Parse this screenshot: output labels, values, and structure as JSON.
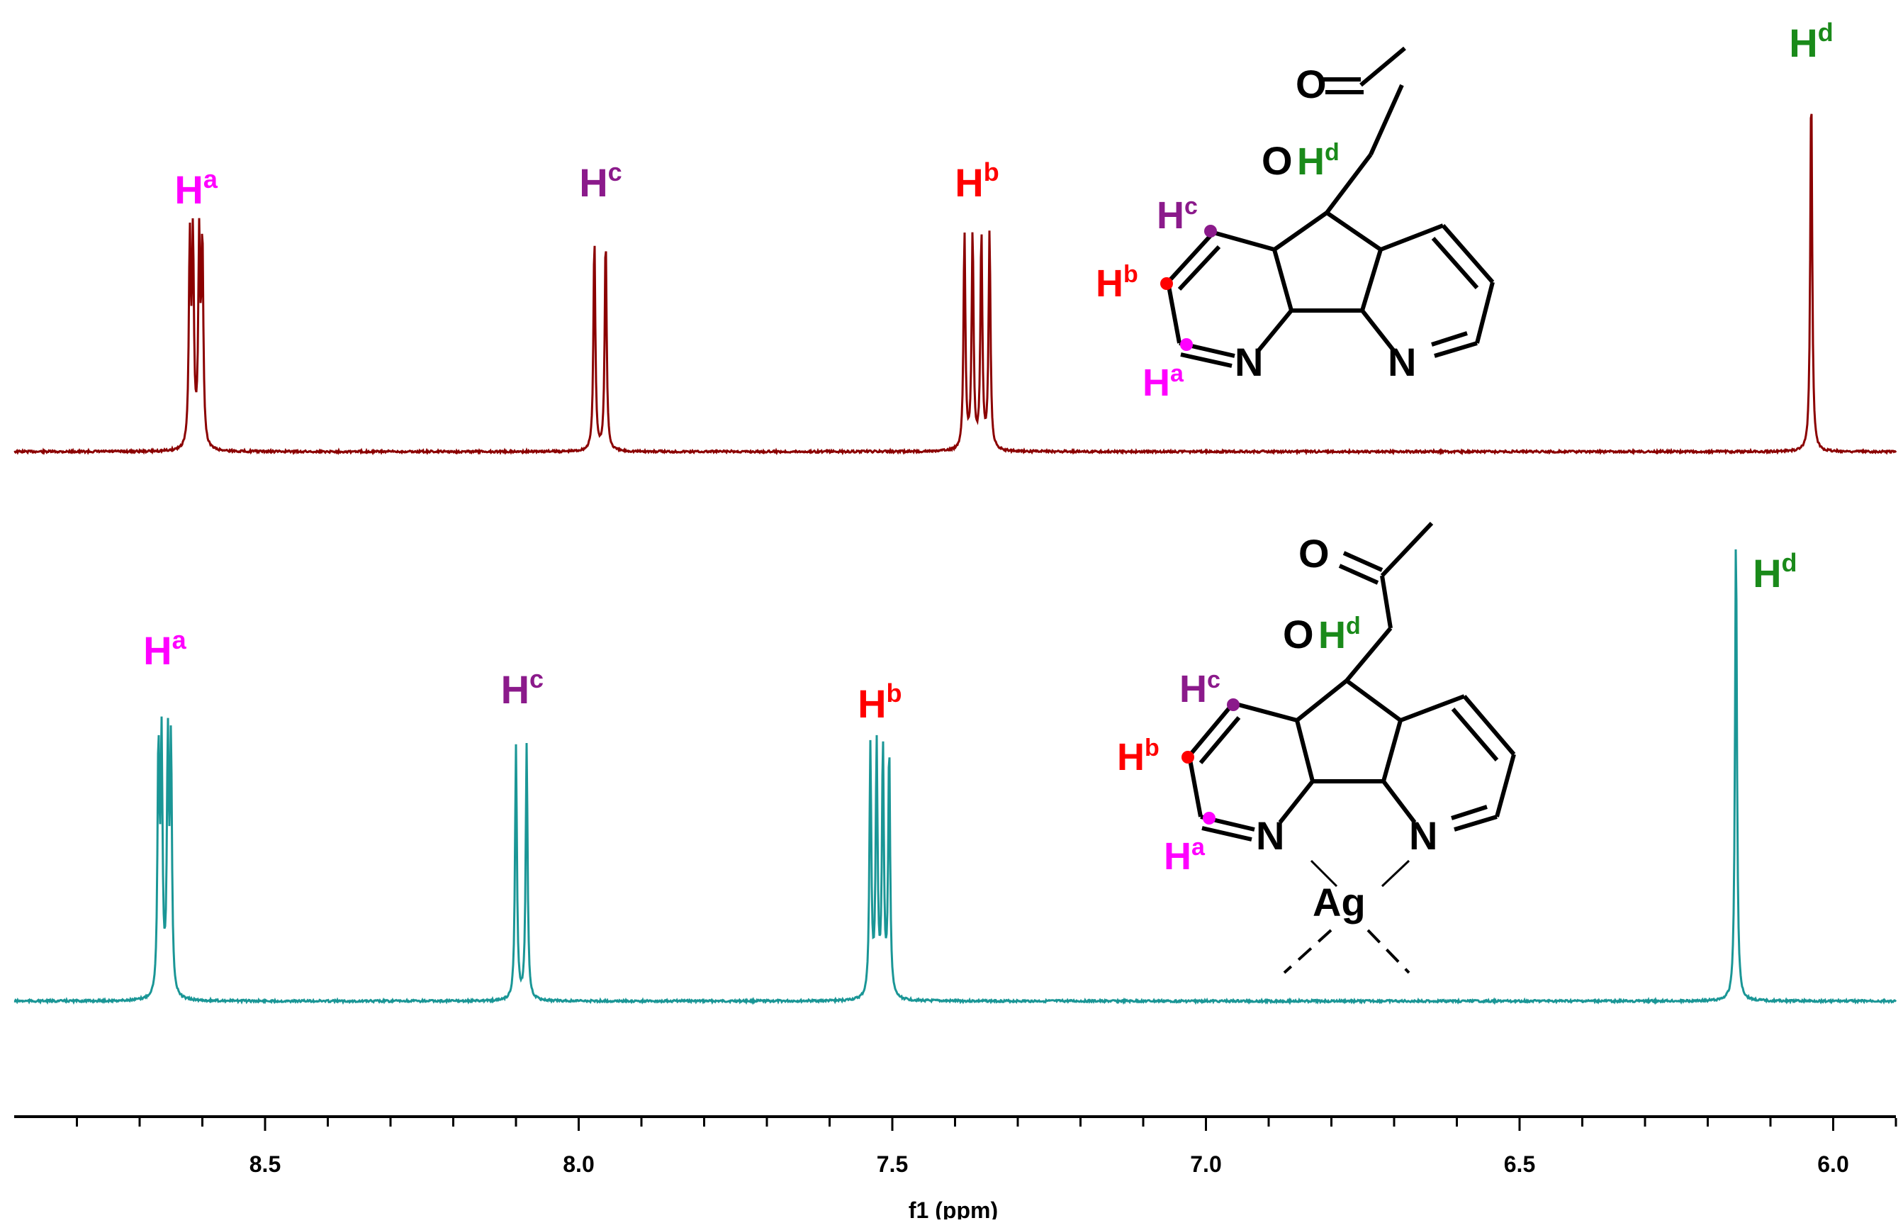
{
  "chart_data": {
    "type": "line",
    "xlabel": "f1 (ppm)",
    "ylabel": "",
    "xlim": [
      8.9,
      5.9
    ],
    "x_reversed": true,
    "x_ticks": [
      "8.5",
      "8.0",
      "7.5",
      "7.0",
      "6.5",
      "6.0"
    ],
    "grid": false,
    "series": [
      {
        "color": "#8b0000",
        "peaks": [
          {
            "label": "H",
            "sup": "a",
            "label_color": "#ff00ff",
            "ppm": 8.61,
            "lines": [
              8.62,
              8.615,
              8.605,
              8.6
            ],
            "intensity": 0.55
          },
          {
            "label": "H",
            "sup": "c",
            "label_color": "#8b1a8b",
            "ppm": 7.965,
            "lines": [
              7.975,
              7.957
            ],
            "intensity": 0.58
          },
          {
            "label": "H",
            "sup": "b",
            "label_color": "#ff0000",
            "ppm": 7.365,
            "lines": [
              7.385,
              7.372,
              7.358,
              7.345
            ],
            "intensity": 0.59
          },
          {
            "label": "H",
            "sup": "d",
            "label_color": "#1a8a1a",
            "ppm": 6.035,
            "lines": [
              6.035
            ],
            "intensity": 1.0
          }
        ],
        "structure": {
          "atoms": [
            "O",
            "O",
            "N",
            "N"
          ],
          "h_labels": [
            {
              "label": "H",
              "sup": "a",
              "color": "#ff00ff"
            },
            {
              "label": "H",
              "sup": "b",
              "color": "#ff0000"
            },
            {
              "label": "H",
              "sup": "c",
              "color": "#8b1a8b"
            },
            {
              "label": "H",
              "sup": "d",
              "color": "#1a8a1a"
            }
          ]
        }
      },
      {
        "color": "#1a9696",
        "peaks": [
          {
            "label": "H",
            "sup": "a",
            "label_color": "#ff00ff",
            "ppm": 8.66,
            "lines": [
              8.67,
              8.665,
              8.655,
              8.65
            ],
            "intensity": 0.52
          },
          {
            "label": "H",
            "sup": "c",
            "label_color": "#8b1a8b",
            "ppm": 8.09,
            "lines": [
              8.1,
              8.083
            ],
            "intensity": 0.54
          },
          {
            "label": "H",
            "sup": "b",
            "label_color": "#ff0000",
            "ppm": 7.52,
            "lines": [
              7.535,
              7.525,
              7.515,
              7.505
            ],
            "intensity": 0.53
          },
          {
            "label": "H",
            "sup": "d",
            "label_color": "#1a8a1a",
            "ppm": 6.155,
            "lines": [
              6.155
            ],
            "intensity": 1.0
          }
        ],
        "structure": {
          "atoms": [
            "O",
            "O",
            "N",
            "N",
            "Ag"
          ],
          "h_labels": [
            {
              "label": "H",
              "sup": "a",
              "color": "#ff00ff"
            },
            {
              "label": "H",
              "sup": "b",
              "color": "#ff0000"
            },
            {
              "label": "H",
              "sup": "c",
              "color": "#8b1a8b"
            },
            {
              "label": "H",
              "sup": "d",
              "color": "#1a8a1a"
            }
          ]
        }
      }
    ]
  }
}
